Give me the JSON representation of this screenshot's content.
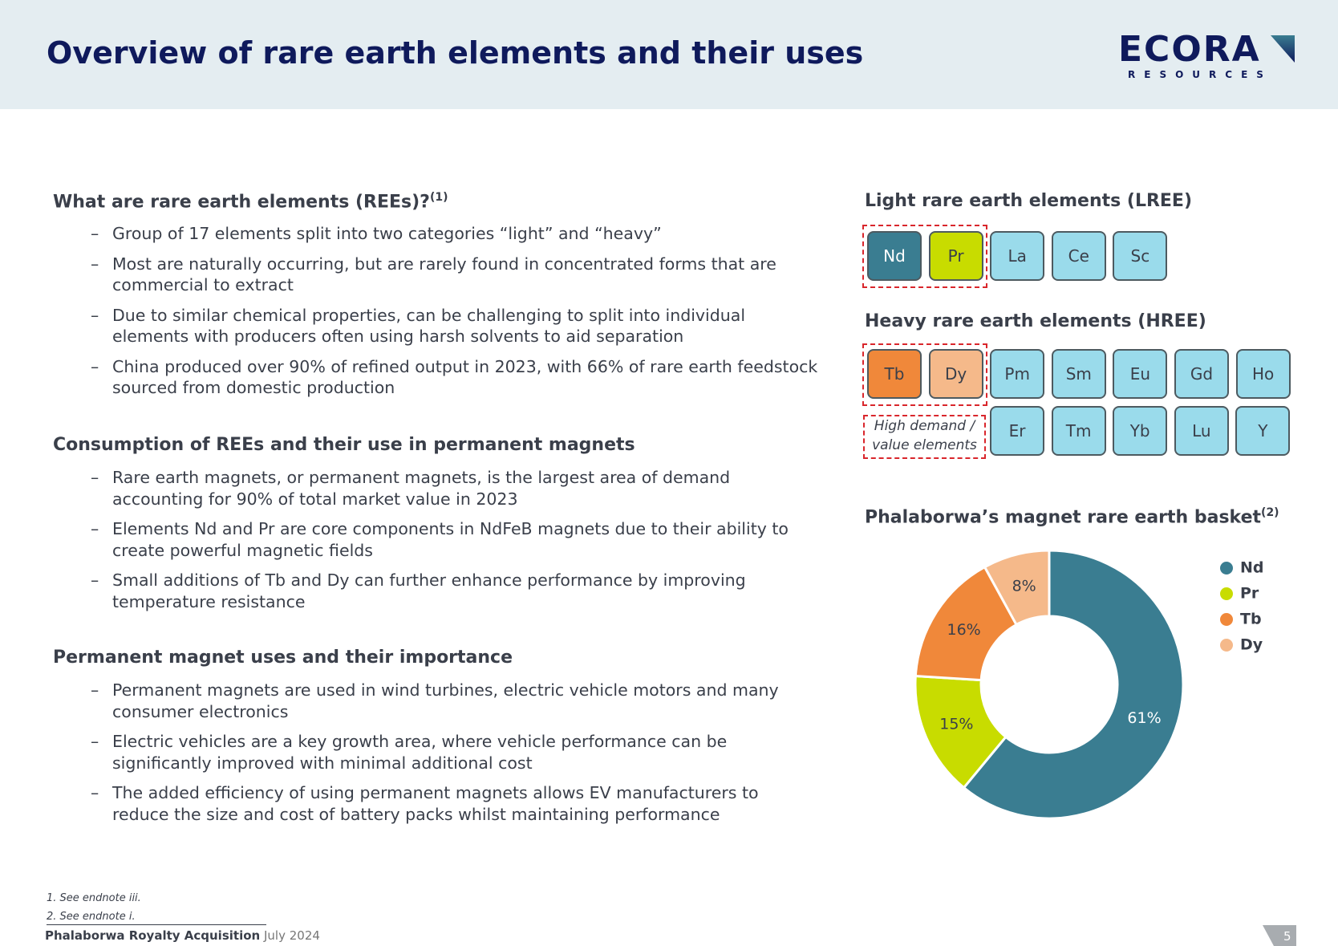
{
  "header": {
    "title": "Overview of rare earth elements and their uses",
    "logo": "ECORA",
    "logo_sub": "RESOURCES"
  },
  "sections": [
    {
      "heading": "What are rare earth elements (REEs)?",
      "note": "(1)",
      "bullets": [
        "Group of 17 elements split into two categories “light” and “heavy”",
        "Most are naturally occurring, but are rarely found in concentrated forms that are commercial to extract",
        "Due to similar chemical properties, can be challenging to split into individual elements with producers often using harsh solvents to aid separation",
        "China produced over 90% of refined output in 2023, with 66% of rare earth feedstock sourced from domestic production"
      ]
    },
    {
      "heading": "Consumption of REEs and their use in permanent magnets",
      "bullets": [
        "Rare earth magnets, or permanent magnets, is the largest area of demand accounting for 90% of total market value in 2023",
        "Elements Nd and Pr are core components in NdFeB magnets due to their ability to create powerful magnetic fields",
        "Small additions of Tb and Dy can further enhance performance by improving temperature resistance"
      ]
    },
    {
      "heading": "Permanent magnet uses and their importance",
      "bullets": [
        "Permanent magnets are used in wind turbines, electric vehicle motors and many consumer electronics",
        "Electric vehicles are a key growth area, where vehicle performance can be significantly improved with minimal additional cost",
        "The added efficiency of using permanent magnets allows EV manufacturers to reduce the size and cost of battery packs whilst maintaining performance"
      ]
    }
  ],
  "lree": {
    "heading": "Light rare earth elements (LREE)",
    "elements": [
      "Nd",
      "Pr",
      "La",
      "Ce",
      "Sc"
    ]
  },
  "hree": {
    "heading": "Heavy rare earth elements (HREE)",
    "elements": [
      "Tb",
      "Dy",
      "Pm",
      "Sm",
      "Eu",
      "Gd",
      "Ho",
      "Er",
      "Tm",
      "Yb",
      "Lu",
      "Y"
    ]
  },
  "high_demand": [
    "High demand /",
    "value elements"
  ],
  "chart_data": {
    "type": "pie",
    "title": "Phalaborwa’s magnet rare earth basket",
    "title_note": "(2)",
    "categories": [
      "Nd",
      "Pr",
      "Tb",
      "Dy"
    ],
    "values": [
      61,
      15,
      16,
      8
    ],
    "value_labels": [
      "61%",
      "15%",
      "16%",
      "8%"
    ],
    "colors": [
      "#3a7d91",
      "#c8dc00",
      "#f0883a",
      "#f5b98a"
    ]
  },
  "footnotes": [
    "1. See endnote iii.",
    "2. See endnote i."
  ],
  "footer": {
    "name": "Phalaborwa Royalty Acquisition",
    "date": "July 2024",
    "page": "5"
  }
}
